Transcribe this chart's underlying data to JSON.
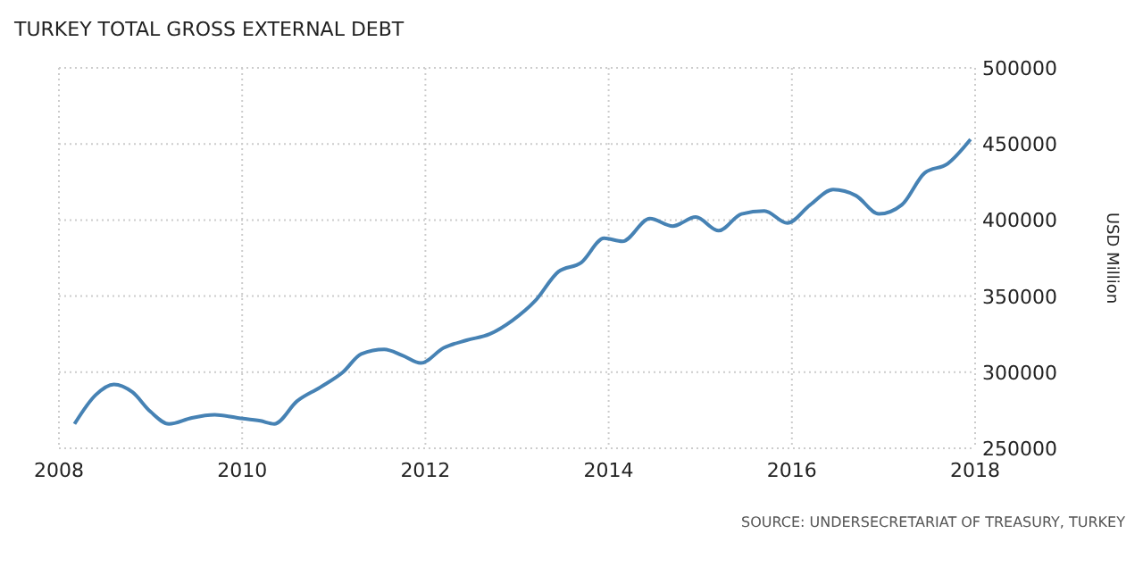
{
  "chart_data": {
    "type": "line",
    "title": "TURKEY TOTAL GROSS EXTERNAL DEBT",
    "ylabel": "USD Million",
    "annotations": [
      "SOURCE: UNDERSECRETARIAT OF TREASURY, TURKEY"
    ],
    "x": [
      2008.17,
      2008.4,
      2008.6,
      2008.8,
      2009.0,
      2009.2,
      2009.45,
      2009.7,
      2009.95,
      2010.2,
      2010.35,
      2010.6,
      2010.85,
      2011.1,
      2011.3,
      2011.55,
      2011.75,
      2011.95,
      2012.2,
      2012.45,
      2012.7,
      2012.95,
      2013.2,
      2013.45,
      2013.7,
      2013.95,
      2014.15,
      2014.45,
      2014.7,
      2014.95,
      2015.2,
      2015.45,
      2015.7,
      2015.95,
      2016.2,
      2016.45,
      2016.7,
      2016.95,
      2017.2,
      2017.45,
      2017.7,
      2017.95
    ],
    "series": [
      {
        "color": "#4682b4",
        "values": [
          266000,
          285000,
          292000,
          287000,
          274000,
          266000,
          270000,
          272000,
          270000,
          268000,
          266000,
          281000,
          290000,
          300000,
          312000,
          315000,
          311000,
          306000,
          316000,
          321000,
          325000,
          334000,
          347000,
          366000,
          372000,
          388000,
          386000,
          401000,
          396000,
          402000,
          393000,
          404000,
          406000,
          398000,
          410000,
          420000,
          416000,
          404000,
          410000,
          431000,
          437000,
          453000
        ]
      }
    ],
    "xlim": [
      2008,
      2018
    ],
    "xticks": [
      2008,
      2010,
      2012,
      2014,
      2016,
      2018
    ],
    "ylim": [
      250000,
      500000
    ],
    "yticks": [
      250000,
      300000,
      350000,
      400000,
      450000,
      500000
    ],
    "grid": true,
    "line_style": "solid",
    "marker": "none"
  }
}
